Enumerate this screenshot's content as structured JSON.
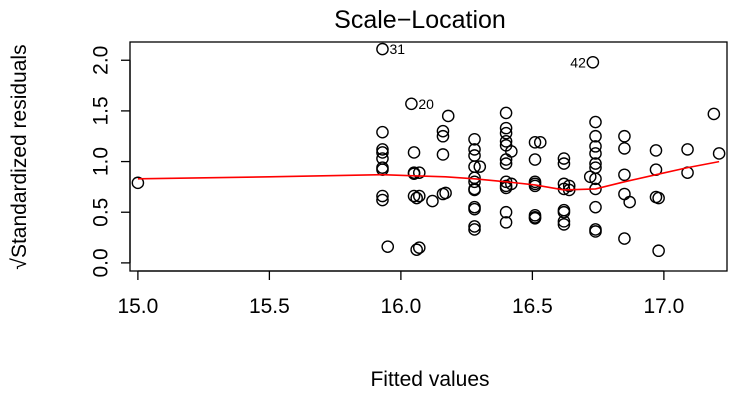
{
  "chart_data": {
    "type": "scatter",
    "title": "Scale−Location",
    "xlabel": "Fitted values",
    "ylabel": "√Standardized residuals",
    "xlim": [
      14.97,
      17.24
    ],
    "ylim": [
      -0.08,
      2.18
    ],
    "xticks": [
      15.0,
      15.5,
      16.0,
      16.5,
      17.0
    ],
    "xtick_labels": [
      "15.0",
      "15.5",
      "16.0",
      "16.5",
      "17.0"
    ],
    "yticks": [
      0.0,
      0.5,
      1.0,
      1.5,
      2.0
    ],
    "ytick_labels": [
      "0.0",
      "0.5",
      "1.0",
      "1.5",
      "2.0"
    ],
    "grid": false,
    "points": [
      [
        15.0,
        0.79
      ],
      [
        15.93,
        2.11
      ],
      [
        15.93,
        1.29
      ],
      [
        15.93,
        1.12
      ],
      [
        15.93,
        1.09
      ],
      [
        15.93,
        1.03
      ],
      [
        15.93,
        0.94
      ],
      [
        15.93,
        0.92
      ],
      [
        15.93,
        0.66
      ],
      [
        15.93,
        0.62
      ],
      [
        15.95,
        0.16
      ],
      [
        16.04,
        1.57
      ],
      [
        16.05,
        1.09
      ],
      [
        16.05,
        0.89
      ],
      [
        16.05,
        0.88
      ],
      [
        16.05,
        0.66
      ],
      [
        16.06,
        0.64
      ],
      [
        16.06,
        0.13
      ],
      [
        16.07,
        0.15
      ],
      [
        16.07,
        0.66
      ],
      [
        16.07,
        0.89
      ],
      [
        16.12,
        0.61
      ],
      [
        16.16,
        1.3
      ],
      [
        16.16,
        1.25
      ],
      [
        16.16,
        1.07
      ],
      [
        16.16,
        0.68
      ],
      [
        16.17,
        0.69
      ],
      [
        16.18,
        1.45
      ],
      [
        16.28,
        1.22
      ],
      [
        16.28,
        1.12
      ],
      [
        16.28,
        1.06
      ],
      [
        16.28,
        0.95
      ],
      [
        16.28,
        0.84
      ],
      [
        16.28,
        0.8
      ],
      [
        16.28,
        0.73
      ],
      [
        16.28,
        0.72
      ],
      [
        16.28,
        0.55
      ],
      [
        16.28,
        0.53
      ],
      [
        16.28,
        0.36
      ],
      [
        16.28,
        0.33
      ],
      [
        16.3,
        0.95
      ],
      [
        16.4,
        1.48
      ],
      [
        16.4,
        1.33
      ],
      [
        16.4,
        1.28
      ],
      [
        16.4,
        1.2
      ],
      [
        16.4,
        1.16
      ],
      [
        16.4,
        1.02
      ],
      [
        16.4,
        0.98
      ],
      [
        16.4,
        0.8
      ],
      [
        16.4,
        0.76
      ],
      [
        16.4,
        0.74
      ],
      [
        16.4,
        0.5
      ],
      [
        16.4,
        0.4
      ],
      [
        16.42,
        0.78
      ],
      [
        16.42,
        1.1
      ],
      [
        16.51,
        1.19
      ],
      [
        16.51,
        1.02
      ],
      [
        16.51,
        0.8
      ],
      [
        16.51,
        0.78
      ],
      [
        16.51,
        0.76
      ],
      [
        16.51,
        0.47
      ],
      [
        16.51,
        0.45
      ],
      [
        16.51,
        0.44
      ],
      [
        16.53,
        1.19
      ],
      [
        16.62,
        1.03
      ],
      [
        16.62,
        0.98
      ],
      [
        16.62,
        0.78
      ],
      [
        16.62,
        0.73
      ],
      [
        16.62,
        0.52
      ],
      [
        16.62,
        0.5
      ],
      [
        16.62,
        0.41
      ],
      [
        16.62,
        0.38
      ],
      [
        16.64,
        0.76
      ],
      [
        16.64,
        0.72
      ],
      [
        16.73,
        1.98
      ],
      [
        16.74,
        1.39
      ],
      [
        16.74,
        1.25
      ],
      [
        16.74,
        1.15
      ],
      [
        16.74,
        1.08
      ],
      [
        16.74,
        0.98
      ],
      [
        16.74,
        0.94
      ],
      [
        16.74,
        0.83
      ],
      [
        16.74,
        0.73
      ],
      [
        16.74,
        0.55
      ],
      [
        16.74,
        0.33
      ],
      [
        16.74,
        0.31
      ],
      [
        16.72,
        0.85
      ],
      [
        16.85,
        1.25
      ],
      [
        16.85,
        1.13
      ],
      [
        16.85,
        0.87
      ],
      [
        16.85,
        0.68
      ],
      [
        16.85,
        0.24
      ],
      [
        16.87,
        0.6
      ],
      [
        16.97,
        1.11
      ],
      [
        16.97,
        0.92
      ],
      [
        16.97,
        0.65
      ],
      [
        16.98,
        0.12
      ],
      [
        16.98,
        0.64
      ],
      [
        17.09,
        1.12
      ],
      [
        17.09,
        0.89
      ],
      [
        17.19,
        1.47
      ],
      [
        17.21,
        1.08
      ]
    ],
    "labeled_points": [
      {
        "x": 15.93,
        "y": 2.11,
        "label": "31",
        "side": "right"
      },
      {
        "x": 16.04,
        "y": 1.57,
        "label": "20",
        "side": "right"
      },
      {
        "x": 16.73,
        "y": 1.98,
        "label": "42",
        "side": "left"
      }
    ],
    "smooth_line": {
      "color": "#ff0000",
      "x": [
        15.0,
        15.5,
        15.93,
        16.05,
        16.17,
        16.28,
        16.4,
        16.51,
        16.62,
        16.74,
        16.85,
        16.97,
        17.09,
        17.21
      ],
      "y": [
        0.83,
        0.85,
        0.87,
        0.86,
        0.85,
        0.83,
        0.8,
        0.77,
        0.72,
        0.73,
        0.8,
        0.87,
        0.94,
        1.0
      ]
    }
  }
}
